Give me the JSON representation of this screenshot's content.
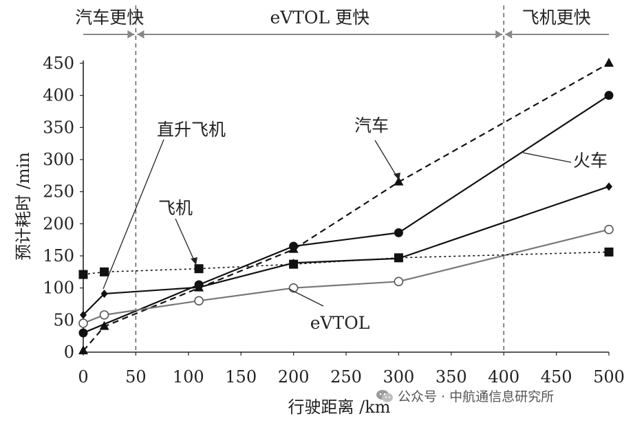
{
  "chart_data": {
    "type": "line",
    "title": "",
    "xlabel": "行驶距离 /km",
    "ylabel": "预计耗时 /min",
    "xlim": [
      0,
      500
    ],
    "ylim": [
      0,
      450
    ],
    "x_ticks": [
      0,
      50,
      100,
      150,
      200,
      250,
      300,
      350,
      400,
      450,
      500
    ],
    "y_ticks": [
      0,
      50,
      100,
      150,
      200,
      250,
      300,
      350,
      400,
      450
    ],
    "grid": false,
    "regions": [
      {
        "label": "汽车更快",
        "from": 0,
        "to": 50
      },
      {
        "label": "eVTOL 更快",
        "from": 50,
        "to": 400
      },
      {
        "label": "飞机更快",
        "from": 400,
        "to": 500
      }
    ],
    "boundaries": [
      50,
      400
    ],
    "series": [
      {
        "name": "汽车",
        "marker": "triangle",
        "line": "dashed",
        "color": "#111111",
        "x": [
          0,
          20,
          110,
          200,
          300,
          500
        ],
        "y": [
          2,
          40,
          100,
          160,
          265,
          450
        ]
      },
      {
        "name": "火车",
        "marker": "circle",
        "line": "solid",
        "color": "#111111",
        "x": [
          0,
          110,
          200,
          300,
          500
        ],
        "y": [
          30,
          105,
          165,
          186,
          400
        ]
      },
      {
        "name": "直升飞机",
        "marker": "diamond",
        "line": "solid",
        "color": "#111111",
        "x": [
          0,
          20,
          110,
          200,
          300,
          500
        ],
        "y": [
          58,
          91,
          101,
          139,
          146,
          258
        ]
      },
      {
        "name": "eVTOL",
        "marker": "open-circle",
        "line": "solid",
        "color": "#777777",
        "x": [
          0,
          20,
          110,
          200,
          300,
          500
        ],
        "y": [
          45,
          58,
          80,
          100,
          110,
          191
        ]
      },
      {
        "name": "飞机",
        "marker": "square",
        "line": "dotted",
        "color": "#111111",
        "x": [
          0,
          20,
          110,
          200,
          300,
          500
        ],
        "y": [
          121,
          125,
          130,
          137,
          147,
          156
        ]
      }
    ]
  },
  "watermark": {
    "icon": "wechat-icon",
    "text": "公众号 · 中航通信息研究所"
  }
}
